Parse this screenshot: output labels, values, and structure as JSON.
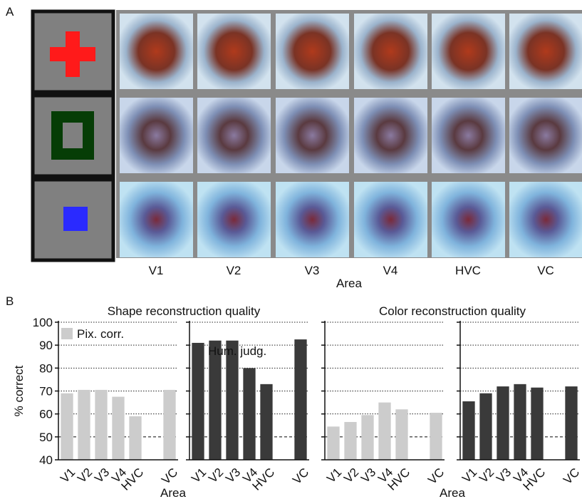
{
  "panel_a": {
    "label": "A",
    "columns": [
      "V1",
      "V2",
      "V3",
      "V4",
      "HVC",
      "VC"
    ],
    "xlabel": "Area"
  },
  "panel_b": {
    "label": "B"
  },
  "chart_data": [
    {
      "type": "bar",
      "title": "Shape reconstruction quality",
      "ylabel": "% correct",
      "xlabel": "Area",
      "categories": [
        "V1",
        "V2",
        "V3",
        "V4",
        "HVC",
        null,
        "VC"
      ],
      "series": [
        {
          "name": "Pix. corr.",
          "color": "#cccccc",
          "values": [
            69,
            70.5,
            70.5,
            67.5,
            59,
            null,
            70.5
          ]
        },
        {
          "name": "Hum. judg.",
          "color": "#3a3a3a",
          "values": [
            91,
            92,
            92,
            80,
            73,
            null,
            92.5
          ]
        }
      ],
      "ylim": [
        40,
        100
      ],
      "yticks": [
        40,
        50,
        60,
        70,
        80,
        90,
        100
      ],
      "chance_level": 50,
      "grid": true
    },
    {
      "type": "bar",
      "title": "Color reconstruction quality",
      "xlabel": "Area",
      "categories": [
        "V1",
        "V2",
        "V3",
        "V4",
        "HVC",
        null,
        "VC"
      ],
      "series": [
        {
          "color": "#cccccc",
          "values": [
            54.5,
            56.5,
            59.5,
            65,
            62,
            null,
            60.5
          ]
        },
        {
          "color": "#3a3a3a",
          "values": [
            65.5,
            69,
            72,
            73,
            71.5,
            null,
            72
          ]
        }
      ],
      "ylim": [
        40,
        100
      ],
      "yticks": [
        40,
        50,
        60,
        70,
        80,
        90,
        100
      ],
      "chance_level": 50,
      "grid": true
    }
  ]
}
